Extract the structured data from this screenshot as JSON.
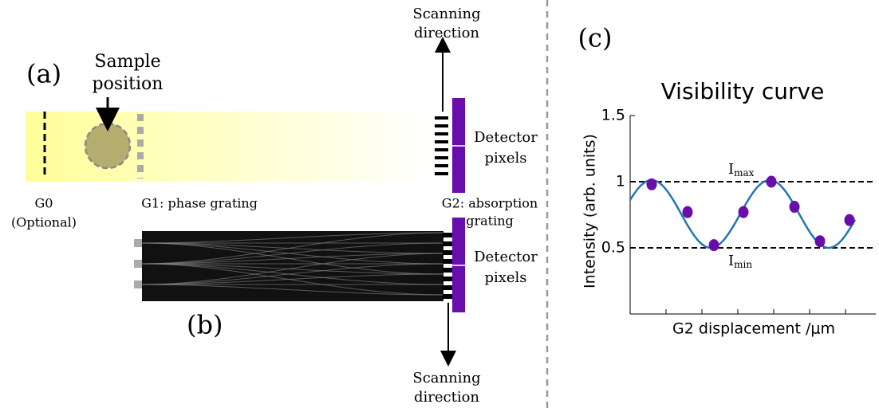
{
  "panel_a": {
    "label": "(a)",
    "sample": [
      "Sample",
      "position"
    ],
    "scanning": [
      "Scanning",
      "direction"
    ],
    "detector": [
      "Detector",
      "pixels"
    ],
    "g0": [
      "G0",
      "(Optional)"
    ],
    "g1": "G1: phase grating",
    "g2": [
      "G2: absorption",
      "grating"
    ]
  },
  "panel_b": {
    "label": "(b)",
    "detector": [
      "Detector",
      "pixels"
    ],
    "scanning": [
      "Scanning",
      "direction"
    ]
  },
  "panel_c": {
    "label": "(c)",
    "chart_data": {
      "type": "scatter",
      "title": "Visibility curve",
      "y_label": "Intensity (arb. units)",
      "x_label": "G2 displacement /μm",
      "values": [
        0.98,
        0.77,
        0.52,
        0.77,
        1.0,
        0.81,
        0.55,
        0.71
      ],
      "color": "#6a0dad",
      "ylim": [
        0,
        1.5
      ],
      "yticks": [
        0.5,
        1,
        1.5
      ],
      "reference_lines": [
        {
          "value": 1,
          "symbol": "I",
          "subscript": "max"
        },
        {
          "value": 0.5,
          "symbol": "I",
          "subscript": "min"
        }
      ]
    }
  }
}
